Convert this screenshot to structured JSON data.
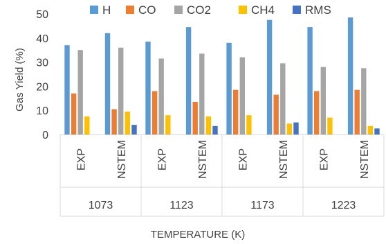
{
  "chart_data": {
    "type": "bar",
    "ylabel": "Gas Yield (%)",
    "xlabel": "TEMPERATURE (K)",
    "ylim": [
      0,
      50
    ],
    "yticks": [
      "0",
      "10",
      "20",
      "30",
      "40",
      "50"
    ],
    "groups": [
      {
        "label": "1073",
        "categories": [
          "EXP",
          "NSTEM"
        ]
      },
      {
        "label": "1123",
        "categories": [
          "EXP",
          "NSTEM"
        ]
      },
      {
        "label": "1173",
        "categories": [
          "EXP",
          "NSTEM"
        ]
      },
      {
        "label": "1223",
        "categories": [
          "EXP",
          "NSTEM"
        ]
      }
    ],
    "categories": [
      "EXP",
      "NSTEM",
      "EXP",
      "NSTEM",
      "EXP",
      "NSTEM",
      "EXP",
      "NSTEM"
    ],
    "series": [
      {
        "name": "H",
        "color": "#5b9bd5",
        "values": [
          37,
          42,
          38.5,
          44.5,
          38,
          47.5,
          44.5,
          48.5
        ]
      },
      {
        "name": "CO",
        "color": "#ed7d31",
        "values": [
          17,
          10.5,
          18,
          13.5,
          18.5,
          16.5,
          18,
          18.5
        ]
      },
      {
        "name": "CO2",
        "color": "#a5a5a5",
        "values": [
          35,
          36,
          31.5,
          33.5,
          32,
          29.5,
          28,
          27.5
        ]
      },
      {
        "name": "CH4",
        "color": "#ffc000",
        "values": [
          7.5,
          9.5,
          8,
          7.5,
          8,
          4.5,
          7,
          3.5
        ]
      },
      {
        "name": "RMS",
        "color": "#4472c4",
        "values": [
          0,
          4,
          0,
          3.5,
          0,
          5,
          0,
          2.5
        ]
      }
    ],
    "legend_position": "top",
    "grid": false
  }
}
